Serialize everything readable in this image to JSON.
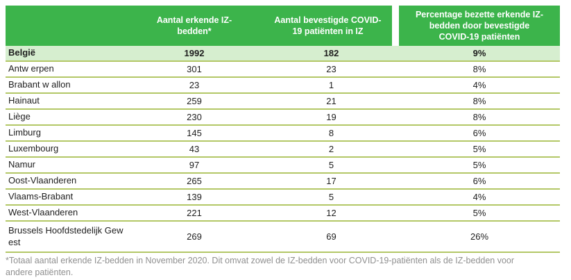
{
  "table": {
    "columns": [
      {
        "label": ""
      },
      {
        "label": "Aantal erkende IZ-\nbedden*"
      },
      {
        "label": "Aantal bevestigde COVID-\n19 patiënten in IZ"
      },
      {
        "label": "Percentage bezette erkende IZ-\nbedden door bevestigde\nCOVID-19 patiënten"
      }
    ],
    "total_row": {
      "region": "België",
      "beds": "1992",
      "patients": "182",
      "percentage": "9%"
    },
    "rows": [
      {
        "region": "Antw erpen",
        "beds": "301",
        "patients": "23",
        "percentage": "8%"
      },
      {
        "region": "Brabant w allon",
        "beds": "23",
        "patients": "1",
        "percentage": "4%"
      },
      {
        "region": "Hainaut",
        "beds": "259",
        "patients": "21",
        "percentage": "8%"
      },
      {
        "region": "Liège",
        "beds": "230",
        "patients": "19",
        "percentage": "8%"
      },
      {
        "region": "Limburg",
        "beds": "145",
        "patients": "8",
        "percentage": "6%"
      },
      {
        "region": "Luxembourg",
        "beds": "43",
        "patients": "2",
        "percentage": "5%"
      },
      {
        "region": "Namur",
        "beds": "97",
        "patients": "5",
        "percentage": "5%"
      },
      {
        "region": "Oost-Vlaanderen",
        "beds": "265",
        "patients": "17",
        "percentage": "6%"
      },
      {
        "region": "Vlaams-Brabant",
        "beds": "139",
        "patients": "5",
        "percentage": "4%"
      },
      {
        "region": "West-Vlaanderen",
        "beds": "221",
        "patients": "12",
        "percentage": "5%"
      },
      {
        "region": "Brussels Hoofdstedelijk Gew est",
        "beds": "269",
        "patients": "69",
        "percentage": "26%"
      }
    ],
    "footnote": "*Totaal aantal erkende IZ-bedden in November 2020. Dit omvat zowel de IZ-bedden voor COVID-19-patiënten als de IZ-bedden voor\nandere patiënten."
  },
  "colors": {
    "header_green": "#3cb44b",
    "total_row_green": "#d6eecf",
    "separator_olive": "#b3c766",
    "footnote_gray": "#8f8f8f"
  }
}
